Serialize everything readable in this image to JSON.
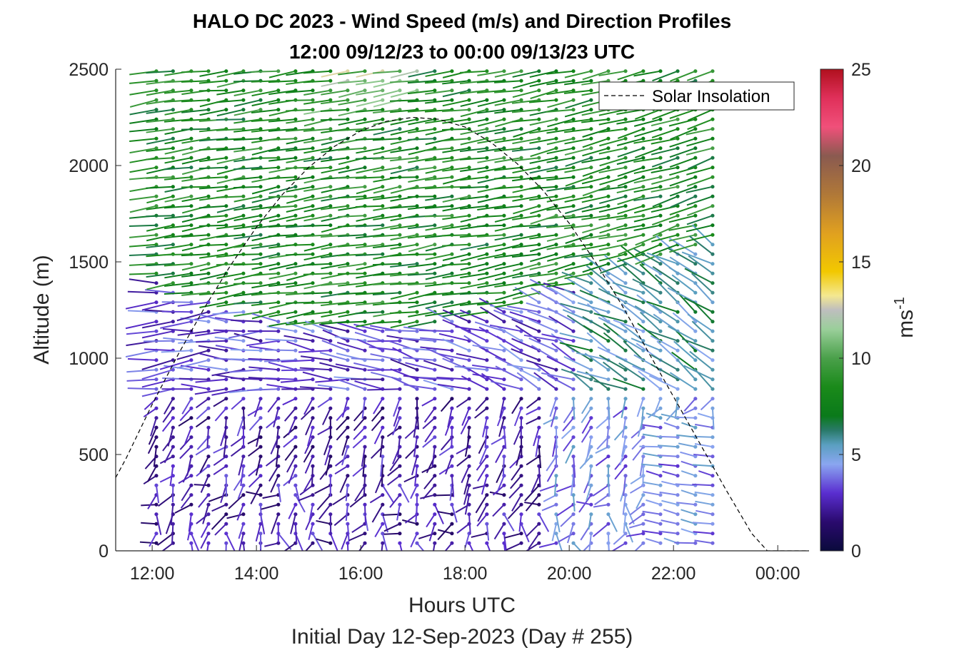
{
  "chart_data": {
    "type": "scatter",
    "title": "HALO DC 2023 - Wind Speed (m/s) and Direction Profiles",
    "subtitle": "12:00 09/12/23 to 00:00 09/13/23  UTC",
    "xlabel": "Hours UTC",
    "xlabel2": "Initial Day 12-Sep-2023 (Day # 255)",
    "ylabel": "Altitude (m)",
    "xlim": [
      11.3,
      24.6
    ],
    "ylim": [
      0,
      2500
    ],
    "x_ticks": [
      12,
      14,
      16,
      18,
      20,
      22,
      24
    ],
    "x_tick_labels": [
      "12:00",
      "14:00",
      "16:00",
      "18:00",
      "20:00",
      "22:00",
      "00:00"
    ],
    "y_ticks": [
      0,
      500,
      1000,
      1500,
      2000,
      2500
    ],
    "y_tick_labels": [
      "0",
      "500",
      "1000",
      "1500",
      "2000",
      "2500"
    ],
    "legend": {
      "label": "Solar Insolation",
      "placement": "top-right"
    },
    "colorbar": {
      "label_base": "ms",
      "label_exp": "-1",
      "range": [
        0,
        25
      ],
      "ticks": [
        0,
        5,
        10,
        15,
        20,
        25
      ],
      "tick_labels": [
        "0",
        "5",
        "10",
        "15",
        "20",
        "25"
      ]
    },
    "profile_times": [
      12.08,
      12.4,
      12.75,
      13.08,
      13.42,
      13.75,
      14.08,
      14.42,
      14.75,
      15.08,
      15.42,
      15.75,
      16.08,
      16.42,
      16.75,
      17.08,
      17.42,
      17.75,
      18.08,
      18.42,
      18.75,
      19.08,
      19.42,
      19.75,
      20.08,
      20.42,
      20.75,
      21.08,
      21.42,
      21.75,
      22.08,
      22.42,
      22.75
    ],
    "altitude_range": [
      40,
      2500
    ],
    "altitude_step": 50,
    "solar_insolation": {
      "x": [
        11.3,
        11.5,
        12.0,
        12.5,
        13.0,
        13.5,
        14.0,
        14.5,
        15.0,
        15.5,
        16.0,
        16.5,
        17.0,
        17.5,
        18.0,
        18.5,
        19.0,
        19.5,
        20.0,
        20.5,
        21.0,
        21.5,
        22.0,
        22.5,
        23.0,
        23.5,
        23.8,
        24.6
      ],
      "y": [
        380,
        480,
        760,
        1020,
        1260,
        1480,
        1680,
        1850,
        1990,
        2100,
        2180,
        2230,
        2250,
        2240,
        2200,
        2120,
        2010,
        1870,
        1700,
        1500,
        1280,
        1040,
        800,
        560,
        320,
        90,
        0,
        0
      ]
    },
    "wind_profile_model": {
      "speed_low_layer": 2.5,
      "speed_upper_layer": 8,
      "boundary_layer_top": 1400,
      "mean_direction_upper": "westerly"
    }
  },
  "colors": {
    "axes": "#262626",
    "legend_line": "#000000"
  }
}
